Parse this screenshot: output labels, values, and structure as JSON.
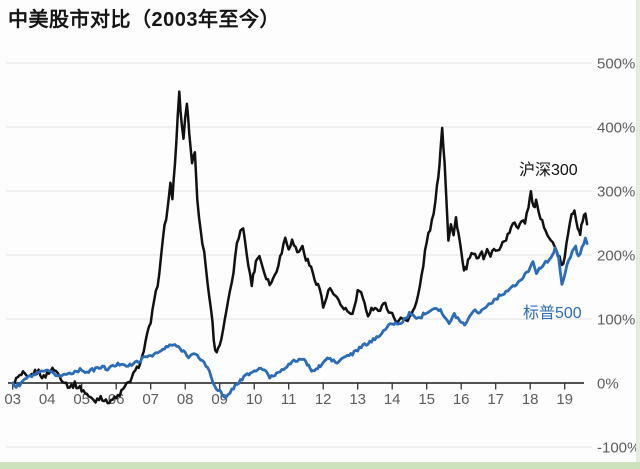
{
  "page": {
    "title": "中美股市对比（2003年至今）",
    "background_color": "#fdfdfd",
    "border_bottom_color": "#cbe2bc",
    "border_right_color": "#e3ecdd"
  },
  "chart_data": {
    "type": "line",
    "title": "中美股市对比（2003年至今）",
    "ylim": [
      -100,
      500
    ],
    "x_range": [
      2003,
      2019.7
    ],
    "grid": true,
    "legend_position": "inline-right-of-lines",
    "y_ticks": [
      {
        "label": "500%",
        "value": 500
      },
      {
        "label": "400%",
        "value": 400
      },
      {
        "label": "300%",
        "value": 300
      },
      {
        "label": "200%",
        "value": 200
      },
      {
        "label": "100%",
        "value": 100
      },
      {
        "label": "0%",
        "value": 0
      },
      {
        "label": "-100%",
        "value": -100
      }
    ],
    "x_ticks": [
      {
        "label": "03",
        "year": 2003
      },
      {
        "label": "04",
        "year": 2004
      },
      {
        "label": "05",
        "year": 2005
      },
      {
        "label": "06",
        "year": 2006
      },
      {
        "label": "07",
        "year": 2007
      },
      {
        "label": "08",
        "year": 2008
      },
      {
        "label": "09",
        "year": 2009
      },
      {
        "label": "10",
        "year": 2010
      },
      {
        "label": "11",
        "year": 2011
      },
      {
        "label": "12",
        "year": 2012
      },
      {
        "label": "13",
        "year": 2013
      },
      {
        "label": "14",
        "year": 2014
      },
      {
        "label": "15",
        "year": 2015
      },
      {
        "label": "16",
        "year": 2016
      },
      {
        "label": "17",
        "year": 2017
      },
      {
        "label": "18",
        "year": 2018
      },
      {
        "label": "19",
        "year": 2019
      }
    ],
    "series": [
      {
        "name": "沪深300",
        "color": "#111111",
        "unit": "percent cumulative return",
        "points": [
          [
            2003.0,
            0
          ],
          [
            2003.15,
            8
          ],
          [
            2003.3,
            14
          ],
          [
            2003.45,
            6
          ],
          [
            2003.6,
            16
          ],
          [
            2003.75,
            18
          ],
          [
            2003.9,
            8
          ],
          [
            2004.05,
            18
          ],
          [
            2004.2,
            22
          ],
          [
            2004.35,
            12
          ],
          [
            2004.5,
            2
          ],
          [
            2004.65,
            -6
          ],
          [
            2004.8,
            -2
          ],
          [
            2004.95,
            -8
          ],
          [
            2005.1,
            -14
          ],
          [
            2005.25,
            -24
          ],
          [
            2005.4,
            -28
          ],
          [
            2005.55,
            -20
          ],
          [
            2005.7,
            -30
          ],
          [
            2005.85,
            -26
          ],
          [
            2006.0,
            -24
          ],
          [
            2006.15,
            -14
          ],
          [
            2006.3,
            -4
          ],
          [
            2006.45,
            8
          ],
          [
            2006.6,
            22
          ],
          [
            2006.75,
            40
          ],
          [
            2006.9,
            75
          ],
          [
            2007.0,
            95
          ],
          [
            2007.1,
            125
          ],
          [
            2007.2,
            155
          ],
          [
            2007.3,
            195
          ],
          [
            2007.4,
            245
          ],
          [
            2007.5,
            275
          ],
          [
            2007.57,
            315
          ],
          [
            2007.63,
            285
          ],
          [
            2007.7,
            340
          ],
          [
            2007.83,
            455
          ],
          [
            2007.9,
            400
          ],
          [
            2007.95,
            385
          ],
          [
            2008.05,
            440
          ],
          [
            2008.12,
            390
          ],
          [
            2008.2,
            345
          ],
          [
            2008.28,
            360
          ],
          [
            2008.35,
            290
          ],
          [
            2008.45,
            235
          ],
          [
            2008.55,
            205
          ],
          [
            2008.65,
            155
          ],
          [
            2008.75,
            115
          ],
          [
            2008.87,
            48
          ],
          [
            2009.0,
            60
          ],
          [
            2009.1,
            80
          ],
          [
            2009.2,
            115
          ],
          [
            2009.3,
            140
          ],
          [
            2009.4,
            175
          ],
          [
            2009.5,
            215
          ],
          [
            2009.6,
            240
          ],
          [
            2009.68,
            246
          ],
          [
            2009.78,
            200
          ],
          [
            2009.93,
            155
          ],
          [
            2010.05,
            190
          ],
          [
            2010.15,
            200
          ],
          [
            2010.3,
            172
          ],
          [
            2010.45,
            155
          ],
          [
            2010.55,
            162
          ],
          [
            2010.65,
            178
          ],
          [
            2010.8,
            205
          ],
          [
            2010.9,
            228
          ],
          [
            2011.0,
            212
          ],
          [
            2011.1,
            222
          ],
          [
            2011.25,
            205
          ],
          [
            2011.4,
            212
          ],
          [
            2011.5,
            195
          ],
          [
            2011.6,
            185
          ],
          [
            2011.7,
            172
          ],
          [
            2011.8,
            158
          ],
          [
            2011.9,
            148
          ],
          [
            2012.0,
            118
          ],
          [
            2012.1,
            135
          ],
          [
            2012.2,
            148
          ],
          [
            2012.3,
            138
          ],
          [
            2012.4,
            130
          ],
          [
            2012.5,
            122
          ],
          [
            2012.6,
            118
          ],
          [
            2012.7,
            112
          ],
          [
            2012.8,
            106
          ],
          [
            2012.9,
            115
          ],
          [
            2013.0,
            145
          ],
          [
            2013.1,
            138
          ],
          [
            2013.2,
            122
          ],
          [
            2013.3,
            108
          ],
          [
            2013.4,
            115
          ],
          [
            2013.5,
            120
          ],
          [
            2013.6,
            112
          ],
          [
            2013.7,
            118
          ],
          [
            2013.8,
            124
          ],
          [
            2013.9,
            114
          ],
          [
            2014.0,
            106
          ],
          [
            2014.1,
            100
          ],
          [
            2014.2,
            96
          ],
          [
            2014.3,
            102
          ],
          [
            2014.4,
            98
          ],
          [
            2014.5,
            104
          ],
          [
            2014.6,
            112
          ],
          [
            2014.7,
            124
          ],
          [
            2014.8,
            150
          ],
          [
            2014.9,
            185
          ],
          [
            2015.0,
            222
          ],
          [
            2015.1,
            242
          ],
          [
            2015.2,
            262
          ],
          [
            2015.3,
            305
          ],
          [
            2015.37,
            345
          ],
          [
            2015.45,
            398
          ],
          [
            2015.52,
            345
          ],
          [
            2015.58,
            280
          ],
          [
            2015.63,
            225
          ],
          [
            2015.7,
            250
          ],
          [
            2015.78,
            230
          ],
          [
            2015.85,
            258
          ],
          [
            2015.92,
            235
          ],
          [
            2016.0,
            205
          ],
          [
            2016.08,
            172
          ],
          [
            2016.15,
            182
          ],
          [
            2016.25,
            195
          ],
          [
            2016.35,
            203
          ],
          [
            2016.45,
            193
          ],
          [
            2016.55,
            205
          ],
          [
            2016.65,
            197
          ],
          [
            2016.75,
            207
          ],
          [
            2016.85,
            200
          ],
          [
            2016.95,
            208
          ],
          [
            2017.05,
            205
          ],
          [
            2017.15,
            216
          ],
          [
            2017.25,
            222
          ],
          [
            2017.35,
            230
          ],
          [
            2017.45,
            242
          ],
          [
            2017.55,
            250
          ],
          [
            2017.65,
            244
          ],
          [
            2017.75,
            256
          ],
          [
            2017.85,
            252
          ],
          [
            2017.95,
            278
          ],
          [
            2018.02,
            298
          ],
          [
            2018.1,
            272
          ],
          [
            2018.17,
            284
          ],
          [
            2018.25,
            262
          ],
          [
            2018.35,
            250
          ],
          [
            2018.45,
            242
          ],
          [
            2018.55,
            228
          ],
          [
            2018.65,
            218
          ],
          [
            2018.75,
            208
          ],
          [
            2018.85,
            195
          ],
          [
            2018.92,
            180
          ],
          [
            2019.0,
            198
          ],
          [
            2019.1,
            232
          ],
          [
            2019.2,
            262
          ],
          [
            2019.28,
            272
          ],
          [
            2019.38,
            245
          ],
          [
            2019.45,
            235
          ],
          [
            2019.52,
            252
          ],
          [
            2019.6,
            266
          ],
          [
            2019.65,
            248
          ]
        ]
      },
      {
        "name": "标普500",
        "color": "#2b6cb8",
        "unit": "percent cumulative return",
        "points": [
          [
            2003.0,
            0
          ],
          [
            2003.1,
            -6
          ],
          [
            2003.2,
            -3
          ],
          [
            2003.35,
            6
          ],
          [
            2003.5,
            10
          ],
          [
            2003.65,
            13
          ],
          [
            2003.8,
            16
          ],
          [
            2003.95,
            19
          ],
          [
            2004.1,
            16
          ],
          [
            2004.25,
            13
          ],
          [
            2004.4,
            11
          ],
          [
            2004.55,
            14
          ],
          [
            2004.7,
            16
          ],
          [
            2004.85,
            19
          ],
          [
            2005.0,
            21
          ],
          [
            2005.15,
            17
          ],
          [
            2005.3,
            20
          ],
          [
            2005.45,
            23
          ],
          [
            2005.6,
            25
          ],
          [
            2005.75,
            22
          ],
          [
            2005.9,
            26
          ],
          [
            2006.05,
            29
          ],
          [
            2006.2,
            31
          ],
          [
            2006.35,
            26
          ],
          [
            2006.5,
            30
          ],
          [
            2006.65,
            34
          ],
          [
            2006.8,
            39
          ],
          [
            2006.95,
            43
          ],
          [
            2007.1,
            45
          ],
          [
            2007.25,
            48
          ],
          [
            2007.4,
            54
          ],
          [
            2007.55,
            58
          ],
          [
            2007.7,
            60
          ],
          [
            2007.8,
            55
          ],
          [
            2007.95,
            50
          ],
          [
            2008.1,
            42
          ],
          [
            2008.25,
            45
          ],
          [
            2008.4,
            40
          ],
          [
            2008.55,
            32
          ],
          [
            2008.7,
            18
          ],
          [
            2008.8,
            2
          ],
          [
            2008.9,
            -8
          ],
          [
            2009.0,
            -12
          ],
          [
            2009.08,
            -20
          ],
          [
            2009.17,
            -25
          ],
          [
            2009.3,
            -14
          ],
          [
            2009.45,
            -4
          ],
          [
            2009.6,
            4
          ],
          [
            2009.75,
            11
          ],
          [
            2009.9,
            16
          ],
          [
            2010.05,
            19
          ],
          [
            2010.2,
            24
          ],
          [
            2010.35,
            16
          ],
          [
            2010.45,
            9
          ],
          [
            2010.6,
            13
          ],
          [
            2010.75,
            19
          ],
          [
            2010.9,
            25
          ],
          [
            2011.05,
            30
          ],
          [
            2011.2,
            35
          ],
          [
            2011.35,
            38
          ],
          [
            2011.5,
            33
          ],
          [
            2011.62,
            22
          ],
          [
            2011.75,
            19
          ],
          [
            2011.88,
            25
          ],
          [
            2012.0,
            31
          ],
          [
            2012.12,
            39
          ],
          [
            2012.25,
            36
          ],
          [
            2012.4,
            31
          ],
          [
            2012.55,
            38
          ],
          [
            2012.7,
            43
          ],
          [
            2012.85,
            45
          ],
          [
            2013.0,
            52
          ],
          [
            2013.15,
            58
          ],
          [
            2013.3,
            62
          ],
          [
            2013.45,
            67
          ],
          [
            2013.6,
            74
          ],
          [
            2013.75,
            82
          ],
          [
            2013.9,
            89
          ],
          [
            2014.05,
            94
          ],
          [
            2014.2,
            91
          ],
          [
            2014.35,
            99
          ],
          [
            2014.5,
            108
          ],
          [
            2014.65,
            104
          ],
          [
            2014.8,
            101
          ],
          [
            2014.95,
            110
          ],
          [
            2015.1,
            114
          ],
          [
            2015.25,
            118
          ],
          [
            2015.4,
            114
          ],
          [
            2015.55,
            100
          ],
          [
            2015.65,
            92
          ],
          [
            2015.8,
            107
          ],
          [
            2015.95,
            99
          ],
          [
            2016.1,
            90
          ],
          [
            2016.25,
            107
          ],
          [
            2016.4,
            113
          ],
          [
            2016.55,
            111
          ],
          [
            2016.7,
            119
          ],
          [
            2016.85,
            125
          ],
          [
            2017.0,
            131
          ],
          [
            2017.15,
            138
          ],
          [
            2017.3,
            143
          ],
          [
            2017.45,
            148
          ],
          [
            2017.6,
            154
          ],
          [
            2017.75,
            162
          ],
          [
            2017.9,
            172
          ],
          [
            2018.0,
            181
          ],
          [
            2018.08,
            192
          ],
          [
            2018.18,
            172
          ],
          [
            2018.3,
            180
          ],
          [
            2018.45,
            188
          ],
          [
            2018.6,
            197
          ],
          [
            2018.72,
            210
          ],
          [
            2018.82,
            195
          ],
          [
            2018.92,
            153
          ],
          [
            2019.02,
            176
          ],
          [
            2019.12,
            192
          ],
          [
            2019.22,
            206
          ],
          [
            2019.32,
            212
          ],
          [
            2019.4,
            197
          ],
          [
            2019.5,
            211
          ],
          [
            2019.6,
            226
          ],
          [
            2019.65,
            218
          ]
        ]
      }
    ]
  }
}
